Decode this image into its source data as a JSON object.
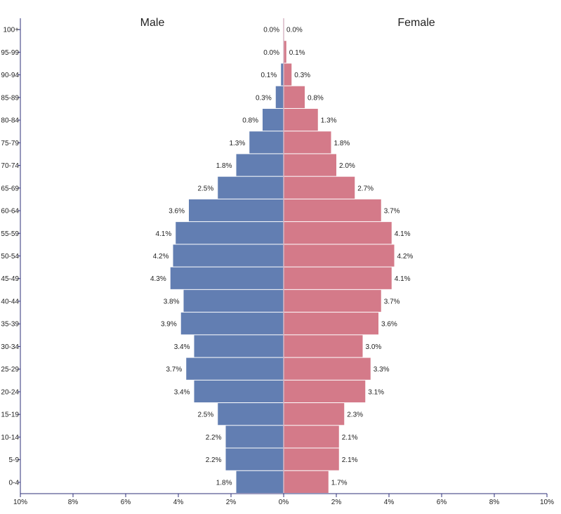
{
  "chart_data": {
    "type": "bar",
    "orientation": "horizontal",
    "layout": "population-pyramid",
    "categories": [
      "100+",
      "95-99",
      "90-94",
      "85-89",
      "80-84",
      "75-79",
      "70-74",
      "65-69",
      "60-64",
      "55-59",
      "50-54",
      "45-49",
      "40-44",
      "35-39",
      "30-34",
      "25-29",
      "20-24",
      "15-19",
      "10-14",
      "5-9",
      "0-4"
    ],
    "series": [
      {
        "name": "Male",
        "side": "left",
        "color": "#627eb2",
        "values": [
          0.0,
          0.0,
          0.1,
          0.3,
          0.8,
          1.3,
          1.8,
          2.5,
          3.6,
          4.1,
          4.2,
          4.3,
          3.8,
          3.9,
          3.4,
          3.7,
          3.4,
          2.5,
          2.2,
          2.2,
          1.8
        ],
        "labels": [
          "0.0%",
          "0.0%",
          "0.1%",
          "0.3%",
          "0.8%",
          "1.3%",
          "1.8%",
          "2.5%",
          "3.6%",
          "4.1%",
          "4.2%",
          "4.3%",
          "3.8%",
          "3.9%",
          "3.4%",
          "3.7%",
          "3.4%",
          "2.5%",
          "2.2%",
          "2.2%",
          "1.8%"
        ]
      },
      {
        "name": "Female",
        "side": "right",
        "color": "#d47a89",
        "values": [
          0.0,
          0.1,
          0.3,
          0.8,
          1.3,
          1.8,
          2.0,
          2.7,
          3.7,
          4.1,
          4.2,
          4.1,
          3.7,
          3.6,
          3.0,
          3.3,
          3.1,
          2.3,
          2.1,
          2.1,
          1.7
        ],
        "labels": [
          "0.0%",
          "0.1%",
          "0.3%",
          "0.8%",
          "1.3%",
          "1.8%",
          "2.0%",
          "2.7%",
          "3.7%",
          "4.1%",
          "4.2%",
          "4.1%",
          "3.7%",
          "3.6%",
          "3.0%",
          "3.3%",
          "3.1%",
          "2.3%",
          "2.1%",
          "2.1%",
          "1.7%"
        ]
      }
    ],
    "xlim": [
      -10,
      10
    ],
    "xticks": [
      -10,
      -8,
      -6,
      -4,
      -2,
      0,
      2,
      4,
      6,
      8,
      10
    ],
    "xtick_labels": [
      "10%",
      "8%",
      "6%",
      "4%",
      "2%",
      "0%",
      "2%",
      "4%",
      "6%",
      "8%",
      "10%"
    ],
    "title": "",
    "xlabel": "",
    "ylabel": "",
    "grid": false,
    "axis_color": "#2d2f7a",
    "center_line_color": "#d8b8c6"
  }
}
